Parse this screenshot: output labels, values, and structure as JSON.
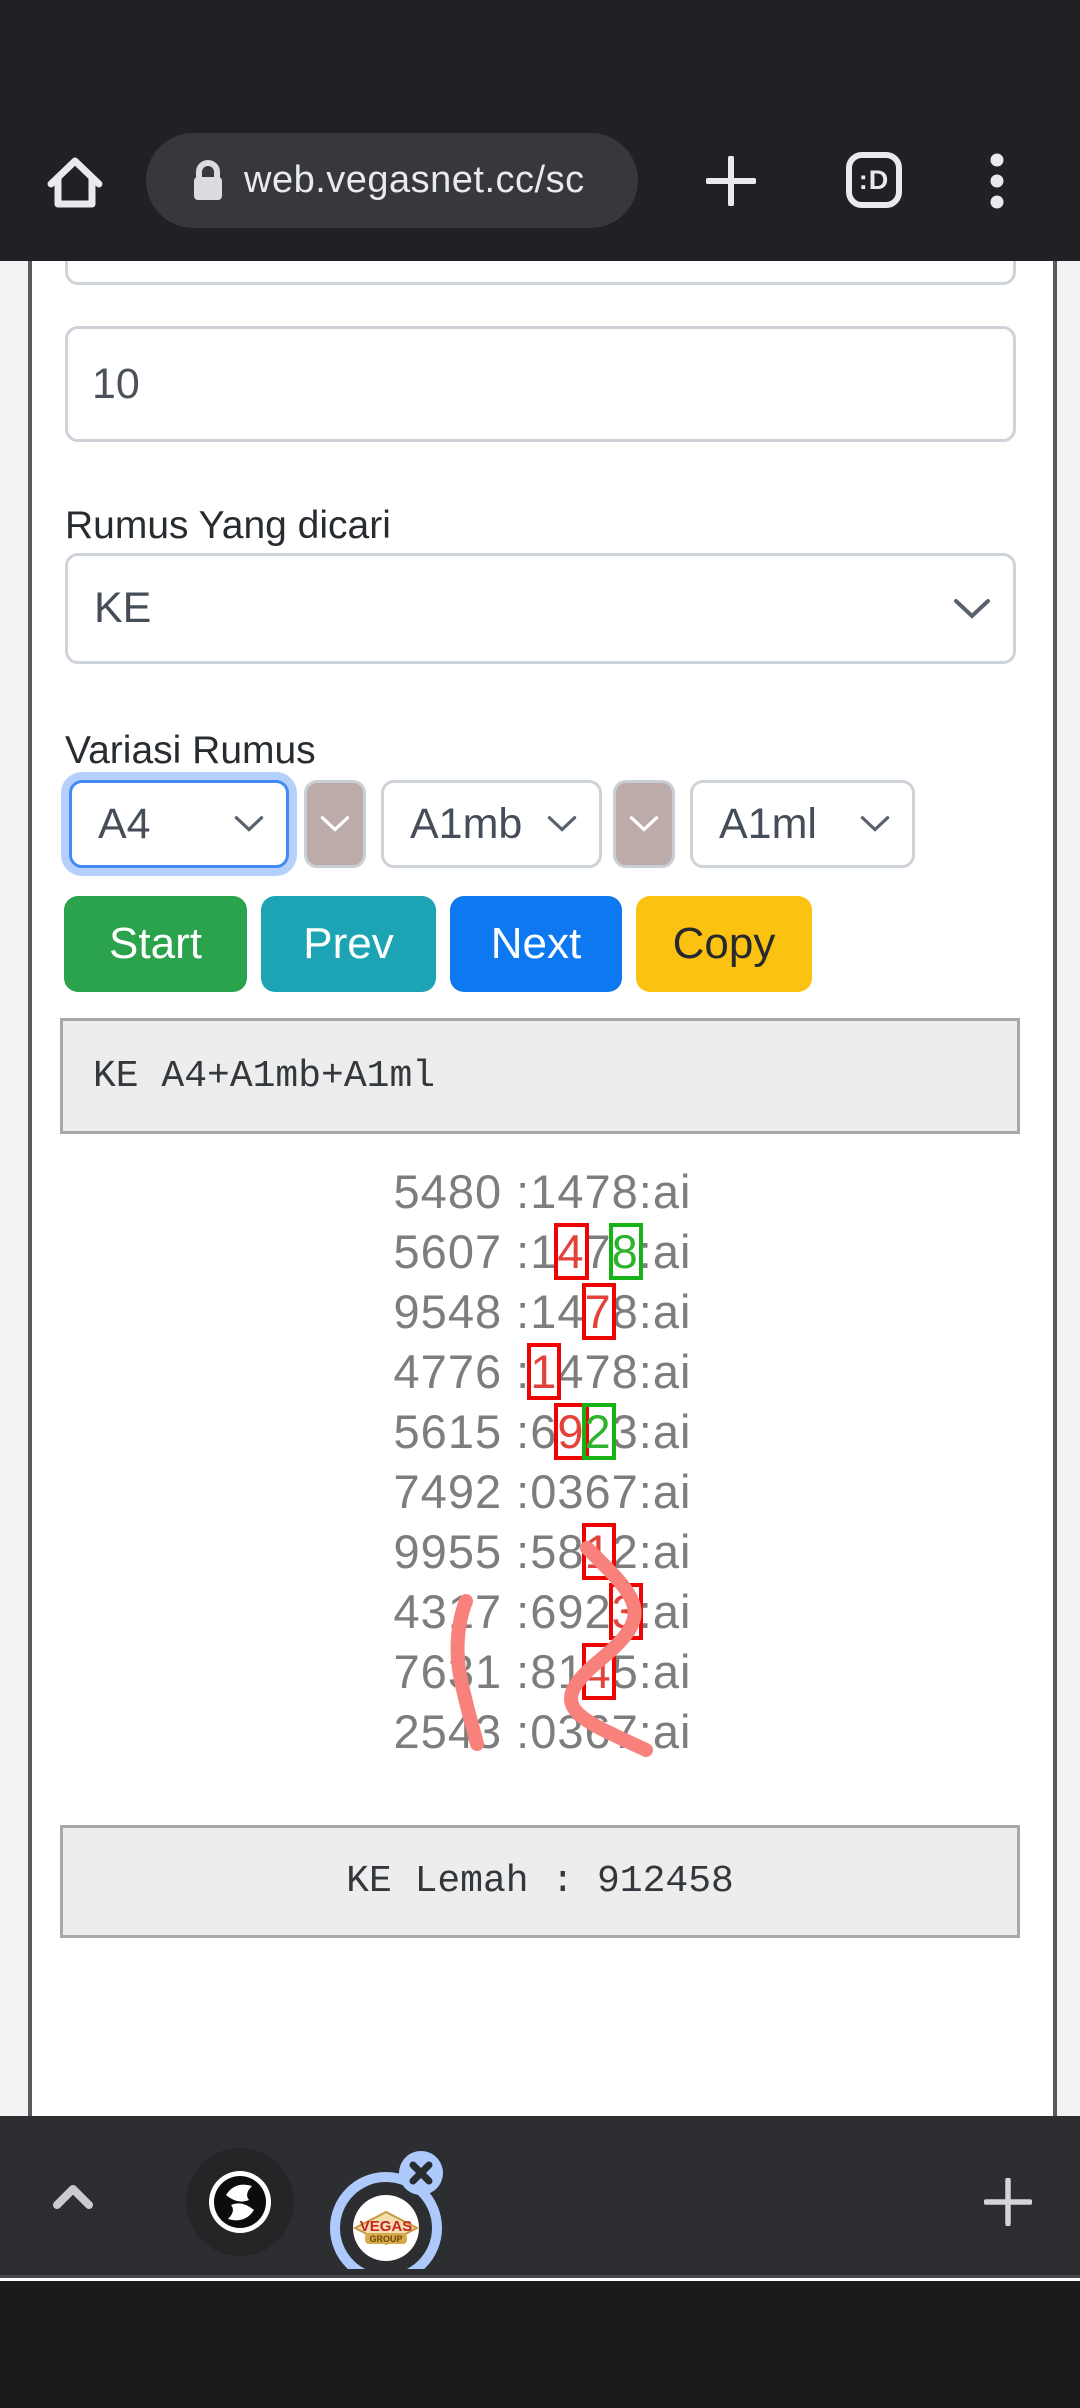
{
  "browser": {
    "url": "web.vegasnet.cc/sc",
    "tab_count_label": ":D",
    "icons": [
      "home-icon",
      "lock-icon",
      "new-tab-plus-icon",
      "tab-switcher-icon",
      "overflow-menu-icon"
    ]
  },
  "form": {
    "hidden_top_input_value": "",
    "count_value": "10",
    "rumus_label": "Rumus Yang dicari",
    "rumus_value": "KE",
    "variasi_label": "Variasi Rumus",
    "variasi_a": "A4",
    "variasi_b": "A1mb",
    "variasi_c": "A1ml",
    "start_label": "Start",
    "prev_label": "Prev",
    "next_label": "Next",
    "copy_label": "Copy"
  },
  "output": {
    "formula_text": "KE A4+A1mb+A1ml",
    "weak_text": "KE Lemah : 912458"
  },
  "results": {
    "separator": " :",
    "suffix": ":ai",
    "rows": [
      {
        "pair": "5480",
        "code": "1478",
        "marks": []
      },
      {
        "pair": "5607",
        "code": "1478",
        "marks": [
          {
            "i": 1,
            "c": "red"
          },
          {
            "i": 3,
            "c": "green"
          }
        ]
      },
      {
        "pair": "9548",
        "code": "1478",
        "marks": [
          {
            "i": 2,
            "c": "red"
          }
        ]
      },
      {
        "pair": "4776",
        "code": "1478",
        "marks": [
          {
            "i": 0,
            "c": "red"
          }
        ]
      },
      {
        "pair": "5615",
        "code": "6923",
        "marks": [
          {
            "i": 1,
            "c": "red"
          },
          {
            "i": 2,
            "c": "green"
          }
        ]
      },
      {
        "pair": "7492",
        "code": "0367",
        "marks": []
      },
      {
        "pair": "9955",
        "code": "5812",
        "marks": [
          {
            "i": 2,
            "c": "red"
          }
        ]
      },
      {
        "pair": "4317",
        "code": "6923",
        "marks": [
          {
            "i": 3,
            "c": "red"
          }
        ]
      },
      {
        "pair": "7631",
        "code": "8145",
        "marks": [
          {
            "i": 2,
            "c": "red"
          }
        ]
      },
      {
        "pair": "2543",
        "code": "0367",
        "marks": []
      }
    ]
  },
  "bottom_bar": {
    "bubble_logo_line1": "VEGAS",
    "bubble_logo_line2": "GROUP",
    "icons": [
      "collapse-chevron-icon",
      "browser-bubble-icon",
      "vegas-bubble-icon",
      "close-bubble-icon",
      "add-bubble-icon"
    ]
  },
  "colors": {
    "start_button": "#2ba24c",
    "prev_button": "#1da4b4",
    "next_button": "#0d78f0",
    "copy_button": "#fbc211",
    "mark_red": "#ee0403",
    "mark_green": "#16b216",
    "marker_stroke": "#f8827b",
    "focus_ring": "#418bf9",
    "bubble_ring": "#aecafc"
  }
}
